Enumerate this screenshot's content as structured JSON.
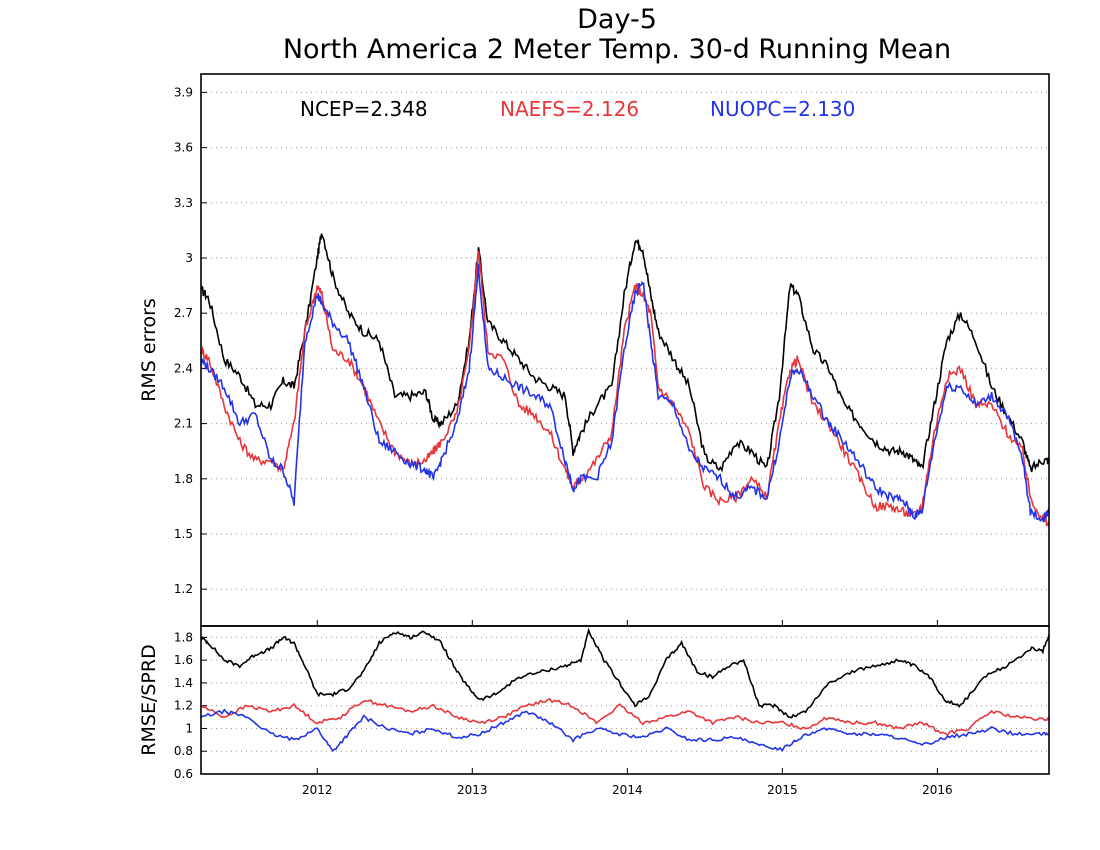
{
  "title_line1": "Day-5",
  "title_line2": "North America 2 Meter Temp. 30-d Running Mean",
  "colors": {
    "NCEP": "#000000",
    "NAEFS": "#e8353a",
    "NUOPC": "#2233e8"
  },
  "legend": [
    {
      "text": "NCEP=2.348",
      "color": "#000000"
    },
    {
      "text": "NAEFS=2.126",
      "color": "#e8353a"
    },
    {
      "text": "NUOPC=2.130",
      "color": "#2233e8"
    }
  ],
  "chart_data": [
    {
      "type": "line",
      "title": "",
      "ylabel": "RMS errors",
      "ylim": [
        1.0,
        4.0
      ],
      "xlim": [
        2011.25,
        2016.72
      ],
      "yticks": [
        "1.2",
        "1.5",
        "1.8",
        "2.1",
        "2.4",
        "2.7",
        "3",
        "3.3",
        "3.6",
        "3.9"
      ],
      "grid": true,
      "legend_position": "top",
      "series": [
        {
          "name": "NCEP",
          "x": [
            2011.25,
            2011.3,
            2011.4,
            2011.5,
            2011.6,
            2011.7,
            2011.78,
            2011.85,
            2011.92,
            2012.0,
            2012.03,
            2012.1,
            2012.2,
            2012.3,
            2012.4,
            2012.5,
            2012.6,
            2012.7,
            2012.75,
            2012.8,
            2012.9,
            2012.98,
            2013.04,
            2013.1,
            2013.2,
            2013.3,
            2013.4,
            2013.5,
            2013.6,
            2013.65,
            2013.7,
            2013.8,
            2013.9,
            2013.98,
            2014.05,
            2014.1,
            2014.15,
            2014.2,
            2014.3,
            2014.4,
            2014.5,
            2014.6,
            2014.7,
            2014.8,
            2014.9,
            2014.98,
            2015.05,
            2015.1,
            2015.2,
            2015.3,
            2015.4,
            2015.5,
            2015.6,
            2015.7,
            2015.78,
            2015.85,
            2015.9,
            2015.98,
            2016.06,
            2016.15,
            2016.25,
            2016.35,
            2016.45,
            2016.55,
            2016.6,
            2016.68,
            2016.72
          ],
          "values": [
            2.83,
            2.78,
            2.45,
            2.36,
            2.2,
            2.2,
            2.33,
            2.3,
            2.6,
            3.0,
            3.15,
            2.9,
            2.7,
            2.6,
            2.55,
            2.25,
            2.25,
            2.27,
            2.12,
            2.1,
            2.2,
            2.55,
            3.05,
            2.65,
            2.55,
            2.45,
            2.35,
            2.3,
            2.25,
            1.95,
            2.05,
            2.2,
            2.3,
            2.8,
            3.1,
            3.05,
            2.8,
            2.6,
            2.45,
            2.3,
            1.92,
            1.85,
            2.0,
            1.95,
            1.85,
            2.25,
            2.85,
            2.8,
            2.5,
            2.4,
            2.2,
            2.1,
            2.0,
            1.95,
            1.95,
            1.9,
            1.85,
            2.2,
            2.55,
            2.7,
            2.55,
            2.3,
            2.15,
            2.0,
            1.85,
            1.9,
            1.9
          ]
        },
        {
          "name": "NAEFS",
          "x": [
            2011.25,
            2011.3,
            2011.4,
            2011.5,
            2011.6,
            2011.7,
            2011.78,
            2011.85,
            2011.92,
            2012.0,
            2012.03,
            2012.1,
            2012.2,
            2012.3,
            2012.4,
            2012.5,
            2012.6,
            2012.7,
            2012.75,
            2012.8,
            2012.9,
            2012.98,
            2013.04,
            2013.1,
            2013.2,
            2013.3,
            2013.4,
            2013.5,
            2013.6,
            2013.65,
            2013.7,
            2013.8,
            2013.9,
            2013.98,
            2014.05,
            2014.1,
            2014.15,
            2014.2,
            2014.3,
            2014.4,
            2014.5,
            2014.6,
            2014.7,
            2014.8,
            2014.9,
            2014.98,
            2015.05,
            2015.1,
            2015.2,
            2015.3,
            2015.4,
            2015.5,
            2015.6,
            2015.7,
            2015.78,
            2015.85,
            2015.9,
            2015.98,
            2016.06,
            2016.15,
            2016.25,
            2016.35,
            2016.45,
            2016.55,
            2016.6,
            2016.68,
            2016.72
          ],
          "values": [
            2.5,
            2.45,
            2.2,
            2.0,
            1.9,
            1.9,
            1.85,
            2.1,
            2.6,
            2.85,
            2.8,
            2.5,
            2.45,
            2.3,
            2.1,
            1.95,
            1.88,
            1.9,
            1.95,
            2.0,
            2.15,
            2.5,
            3.05,
            2.5,
            2.45,
            2.2,
            2.15,
            2.05,
            1.85,
            1.75,
            1.8,
            1.9,
            2.05,
            2.6,
            2.85,
            2.8,
            2.7,
            2.3,
            2.2,
            2.05,
            1.75,
            1.68,
            1.7,
            1.8,
            1.7,
            2.1,
            2.4,
            2.45,
            2.2,
            2.1,
            1.95,
            1.8,
            1.65,
            1.65,
            1.62,
            1.6,
            1.65,
            2.05,
            2.35,
            2.4,
            2.2,
            2.2,
            2.05,
            1.95,
            1.7,
            1.58,
            1.55
          ]
        },
        {
          "name": "NUOPC",
          "x": [
            2011.25,
            2011.3,
            2011.4,
            2011.5,
            2011.6,
            2011.7,
            2011.78,
            2011.85,
            2011.92,
            2012.0,
            2012.03,
            2012.1,
            2012.2,
            2012.3,
            2012.4,
            2012.5,
            2012.6,
            2012.7,
            2012.75,
            2012.8,
            2012.9,
            2012.98,
            2013.04,
            2013.1,
            2013.2,
            2013.3,
            2013.4,
            2013.5,
            2013.6,
            2013.65,
            2013.7,
            2013.8,
            2013.9,
            2013.98,
            2014.05,
            2014.1,
            2014.15,
            2014.2,
            2014.3,
            2014.4,
            2014.5,
            2014.6,
            2014.7,
            2014.8,
            2014.9,
            2014.98,
            2015.05,
            2015.1,
            2015.2,
            2015.3,
            2015.4,
            2015.5,
            2015.6,
            2015.7,
            2015.78,
            2015.85,
            2015.9,
            2015.98,
            2016.06,
            2016.15,
            2016.25,
            2016.35,
            2016.45,
            2016.55,
            2016.6,
            2016.68,
            2016.72
          ],
          "values": [
            2.45,
            2.4,
            2.3,
            2.1,
            2.15,
            1.9,
            1.85,
            1.67,
            2.55,
            2.8,
            2.75,
            2.65,
            2.55,
            2.3,
            2.0,
            1.95,
            1.88,
            1.85,
            1.8,
            1.9,
            2.1,
            2.4,
            2.95,
            2.4,
            2.35,
            2.3,
            2.25,
            2.2,
            1.9,
            1.75,
            1.8,
            1.8,
            2.0,
            2.5,
            2.8,
            2.88,
            2.55,
            2.25,
            2.2,
            1.95,
            1.85,
            1.8,
            1.7,
            1.75,
            1.7,
            2.0,
            2.35,
            2.4,
            2.25,
            2.1,
            2.0,
            1.88,
            1.75,
            1.7,
            1.68,
            1.6,
            1.62,
            2.0,
            2.3,
            2.3,
            2.2,
            2.25,
            2.15,
            1.9,
            1.62,
            1.58,
            1.63
          ]
        }
      ]
    },
    {
      "type": "line",
      "title": "",
      "ylabel": "RMSE/SPRD",
      "ylim": [
        0.6,
        1.9
      ],
      "xlim": [
        2011.25,
        2016.72
      ],
      "yticks": [
        "0.6",
        "0.8",
        "1",
        "1.2",
        "1.4",
        "1.6",
        "1.8"
      ],
      "xticks": [
        "2012",
        "2013",
        "2014",
        "2015",
        "2016"
      ],
      "grid": true,
      "series": [
        {
          "name": "NCEP",
          "x": [
            2011.25,
            2011.3,
            2011.4,
            2011.5,
            2011.6,
            2011.7,
            2011.78,
            2011.85,
            2011.92,
            2012.0,
            2012.1,
            2012.2,
            2012.3,
            2012.4,
            2012.5,
            2012.6,
            2012.7,
            2012.8,
            2012.9,
            2012.98,
            2013.05,
            2013.15,
            2013.3,
            2013.45,
            2013.6,
            2013.7,
            2013.75,
            2013.85,
            2013.95,
            2014.05,
            2014.15,
            2014.25,
            2014.35,
            2014.45,
            2014.55,
            2014.65,
            2014.75,
            2014.85,
            2014.95,
            2015.05,
            2015.15,
            2015.3,
            2015.45,
            2015.6,
            2015.75,
            2015.85,
            2015.95,
            2016.05,
            2016.15,
            2016.3,
            2016.45,
            2016.6,
            2016.68,
            2016.72
          ],
          "values": [
            1.8,
            1.75,
            1.6,
            1.55,
            1.65,
            1.7,
            1.8,
            1.75,
            1.55,
            1.3,
            1.3,
            1.35,
            1.5,
            1.75,
            1.85,
            1.8,
            1.85,
            1.75,
            1.5,
            1.35,
            1.25,
            1.3,
            1.45,
            1.5,
            1.55,
            1.6,
            1.85,
            1.6,
            1.4,
            1.2,
            1.3,
            1.6,
            1.75,
            1.5,
            1.45,
            1.55,
            1.6,
            1.2,
            1.2,
            1.1,
            1.15,
            1.4,
            1.5,
            1.55,
            1.6,
            1.55,
            1.45,
            1.25,
            1.2,
            1.45,
            1.55,
            1.7,
            1.68,
            1.82
          ]
        },
        {
          "name": "NAEFS",
          "x": [
            2011.25,
            2011.4,
            2011.55,
            2011.7,
            2011.85,
            2012.0,
            2012.15,
            2012.3,
            2012.45,
            2012.6,
            2012.75,
            2012.9,
            2013.05,
            2013.2,
            2013.35,
            2013.5,
            2013.65,
            2013.8,
            2013.95,
            2014.1,
            2014.25,
            2014.4,
            2014.55,
            2014.7,
            2014.85,
            2015.0,
            2015.15,
            2015.3,
            2015.45,
            2015.6,
            2015.75,
            2015.9,
            2016.05,
            2016.2,
            2016.35,
            2016.5,
            2016.65,
            2016.72
          ],
          "values": [
            1.2,
            1.1,
            1.2,
            1.15,
            1.2,
            1.05,
            1.1,
            1.25,
            1.2,
            1.15,
            1.2,
            1.1,
            1.05,
            1.1,
            1.2,
            1.25,
            1.2,
            1.05,
            1.2,
            1.05,
            1.1,
            1.15,
            1.05,
            1.1,
            1.05,
            1.05,
            1.0,
            1.1,
            1.05,
            1.05,
            1.0,
            1.05,
            0.95,
            1.0,
            1.15,
            1.1,
            1.08,
            1.08
          ]
        },
        {
          "name": "NUOPC",
          "x": [
            2011.25,
            2011.4,
            2011.55,
            2011.7,
            2011.85,
            2012.0,
            2012.1,
            2012.2,
            2012.3,
            2012.45,
            2012.6,
            2012.75,
            2012.9,
            2013.05,
            2013.2,
            2013.35,
            2013.5,
            2013.65,
            2013.8,
            2013.95,
            2014.1,
            2014.25,
            2014.4,
            2014.55,
            2014.7,
            2014.85,
            2015.0,
            2015.15,
            2015.3,
            2015.45,
            2015.6,
            2015.75,
            2015.9,
            2016.05,
            2016.2,
            2016.35,
            2016.5,
            2016.65,
            2016.72
          ],
          "values": [
            1.1,
            1.15,
            1.1,
            0.95,
            0.9,
            1.0,
            0.8,
            0.95,
            1.1,
            1.0,
            0.95,
            1.0,
            0.92,
            0.95,
            1.05,
            1.15,
            1.05,
            0.9,
            1.0,
            0.95,
            0.92,
            1.0,
            0.9,
            0.9,
            0.92,
            0.85,
            0.82,
            0.95,
            1.0,
            0.95,
            0.95,
            0.92,
            0.85,
            0.92,
            0.95,
            1.0,
            0.95,
            0.95,
            0.95
          ]
        }
      ]
    }
  ]
}
